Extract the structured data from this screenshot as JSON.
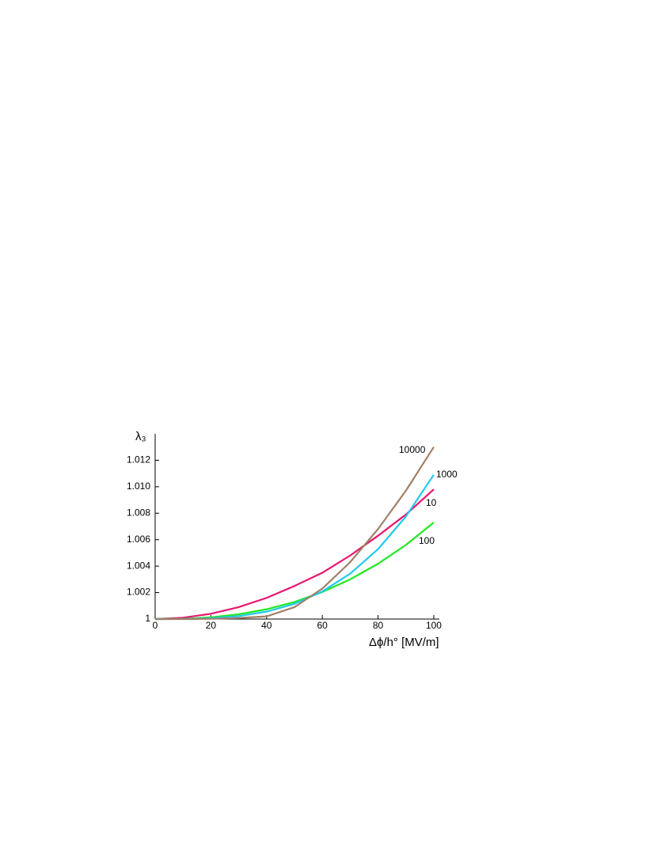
{
  "chart_data": {
    "type": "line",
    "xlabel": "Δϕ/h° [MV/m]",
    "ylabel": "λ₃",
    "x": [
      0,
      10,
      20,
      30,
      40,
      50,
      60,
      70,
      80,
      90,
      100
    ],
    "series": [
      {
        "name": "10",
        "color": "#e8156e",
        "values": [
          1,
          1.0001,
          1.0004,
          1.0009,
          1.0016,
          1.0025,
          1.0035,
          1.0048,
          1.0063,
          1.0079,
          1.0098
        ]
      },
      {
        "name": "100",
        "color": "#22e822",
        "values": [
          1,
          1.00002,
          1.00013,
          1.00036,
          1.00074,
          1.00129,
          1.00204,
          1.003,
          1.00418,
          1.0056,
          1.0073
        ]
      },
      {
        "name": "1000",
        "color": "#22c8f0",
        "values": [
          1,
          1.000006,
          1.00006,
          1.00022,
          1.00056,
          1.00115,
          1.00208,
          1.00343,
          1.00528,
          1.00775,
          1.0109
        ]
      },
      {
        "name": "10000",
        "color": "#a08068",
        "values": [
          1,
          1,
          1.00002,
          1.00008,
          1.0002,
          1.0009,
          1.0023,
          1.0043,
          1.0068,
          1.0097,
          1.013
        ]
      }
    ],
    "xlim": [
      0,
      102
    ],
    "ylim": [
      1,
      1.014
    ],
    "xticks": [
      0,
      20,
      40,
      60,
      80,
      100
    ],
    "yticks": [
      1,
      1.002,
      1.004,
      1.006,
      1.008,
      {
        "value": 1.01,
        "label": "1.010"
      },
      1.012
    ]
  }
}
